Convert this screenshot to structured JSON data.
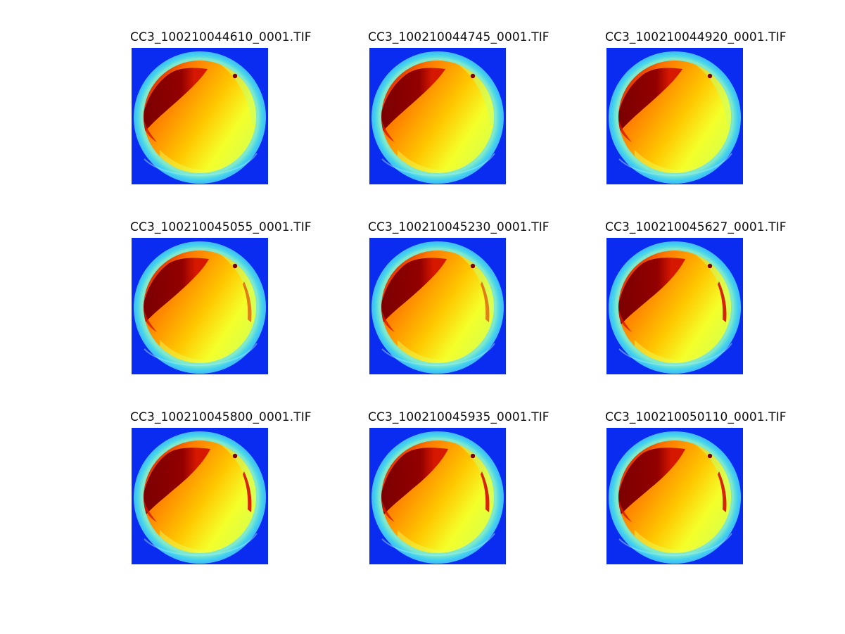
{
  "colors": {
    "background": "#0a2cf0",
    "outer_ring": "#3fd0f2",
    "hot_core": "#7a0000",
    "hot_edge": "#d61800",
    "warm": "#ff7a00",
    "yellow": "#f4ff2a",
    "green_yellow": "#b6f66a"
  },
  "panels": [
    {
      "title": "CC3_100210044610_0001.TIF",
      "variant": 0
    },
    {
      "title": "CC3_100210044745_0001.TIF",
      "variant": 0
    },
    {
      "title": "CC3_100210044920_0001.TIF",
      "variant": 0
    },
    {
      "title": "CC3_100210045055_0001.TIF",
      "variant": 1
    },
    {
      "title": "CC3_100210045230_0001.TIF",
      "variant": 1
    },
    {
      "title": "CC3_100210045627_0001.TIF",
      "variant": 2
    },
    {
      "title": "CC3_100210045800_0001.TIF",
      "variant": 2
    },
    {
      "title": "CC3_100210045935_0001.TIF",
      "variant": 2
    },
    {
      "title": "CC3_100210050110_0001.TIF",
      "variant": 2
    }
  ]
}
